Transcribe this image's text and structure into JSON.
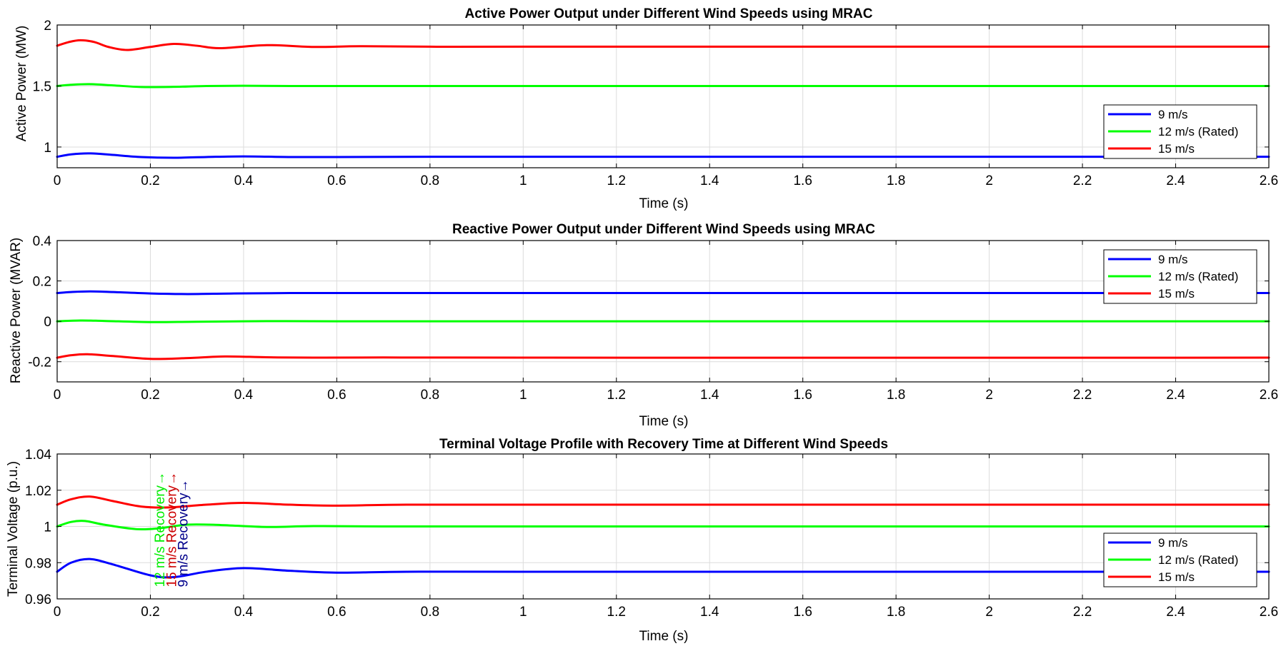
{
  "colors": {
    "series1": "#0000ff",
    "series2": "#00ff00",
    "series3": "#ff0000",
    "grid": "#dcdcdc",
    "axis": "#000000",
    "background": "#ffffff",
    "ann1": "#00ee00",
    "ann2": "#cc0000",
    "ann3": "#00008b"
  },
  "chart_data": [
    {
      "type": "line",
      "title": "Active Power Output under Different Wind Speeds using MRAC",
      "xlabel": "Time (s)",
      "ylabel": "Active Power (MW)",
      "xlim": [
        0,
        2.6
      ],
      "ylim": [
        0.83,
        2.0
      ],
      "grid": true,
      "xticks": [
        0,
        0.2,
        0.4,
        0.6,
        0.8,
        1,
        1.2,
        1.4,
        1.6,
        1.8,
        2,
        2.2,
        2.4,
        2.6
      ],
      "xtick_labels": [
        "0",
        "0.2",
        "0.4",
        "0.6",
        "0.8",
        "1",
        "1.2",
        "1.4",
        "1.6",
        "1.8",
        "2",
        "2.2",
        "2.4",
        "2.6"
      ],
      "yticks": [
        1.0,
        1.5,
        2.0
      ],
      "ytick_labels": [
        "1",
        "1.5",
        "2"
      ],
      "legend_position": "right",
      "series": [
        {
          "name": "9 m/s",
          "color_key": "series1",
          "x": [
            0,
            0.03,
            0.07,
            0.12,
            0.18,
            0.25,
            0.32,
            0.4,
            0.5,
            0.6,
            0.8,
            1.2,
            2.6
          ],
          "y": [
            0.92,
            0.94,
            0.948,
            0.935,
            0.918,
            0.912,
            0.918,
            0.923,
            0.918,
            0.918,
            0.92,
            0.92,
            0.92
          ]
        },
        {
          "name": "12 m/s (Rated)",
          "color_key": "series2",
          "x": [
            0,
            0.03,
            0.07,
            0.12,
            0.18,
            0.25,
            0.32,
            0.4,
            0.5,
            0.6,
            0.8,
            1.2,
            2.6
          ],
          "y": [
            1.5,
            1.51,
            1.515,
            1.505,
            1.492,
            1.493,
            1.5,
            1.502,
            1.5,
            1.5,
            1.5,
            1.5,
            1.5
          ]
        },
        {
          "name": "15 m/s",
          "color_key": "series3",
          "x": [
            0,
            0.025,
            0.05,
            0.08,
            0.11,
            0.15,
            0.2,
            0.25,
            0.3,
            0.35,
            0.45,
            0.55,
            0.65,
            0.8,
            1.0,
            2.6
          ],
          "y": [
            1.83,
            1.86,
            1.875,
            1.86,
            1.82,
            1.795,
            1.82,
            1.845,
            1.83,
            1.81,
            1.835,
            1.82,
            1.826,
            1.822,
            1.822,
            1.822
          ]
        }
      ]
    },
    {
      "type": "line",
      "title": "Reactive Power Output under Different Wind Speeds using MRAC",
      "xlabel": "Time (s)",
      "ylabel": "Reactive Power (MVAR)",
      "xlim": [
        0,
        2.6
      ],
      "ylim": [
        -0.3,
        0.4
      ],
      "grid": true,
      "xticks": [
        0,
        0.2,
        0.4,
        0.6,
        0.8,
        1,
        1.2,
        1.4,
        1.6,
        1.8,
        2,
        2.2,
        2.4,
        2.6
      ],
      "xtick_labels": [
        "0",
        "0.2",
        "0.4",
        "0.6",
        "0.8",
        "1",
        "1.2",
        "1.4",
        "1.6",
        "1.8",
        "2",
        "2.2",
        "2.4",
        "2.6"
      ],
      "yticks": [
        -0.2,
        0,
        0.2,
        0.4
      ],
      "ytick_labels": [
        "-0.2",
        "0",
        "0.2",
        "0.4"
      ],
      "legend_position": "top-right",
      "series": [
        {
          "name": "9 m/s",
          "color_key": "series1",
          "x": [
            0,
            0.03,
            0.07,
            0.12,
            0.2,
            0.28,
            0.38,
            0.5,
            0.7,
            1.0,
            2.6
          ],
          "y": [
            0.14,
            0.145,
            0.148,
            0.145,
            0.138,
            0.135,
            0.138,
            0.14,
            0.14,
            0.14,
            0.14
          ]
        },
        {
          "name": "12 m/s (Rated)",
          "color_key": "series2",
          "x": [
            0,
            0.05,
            0.1,
            0.2,
            0.3,
            0.45,
            0.6,
            1.0,
            2.6
          ],
          "y": [
            0.0,
            0.004,
            0.002,
            -0.004,
            -0.002,
            0.001,
            0.0,
            0.0,
            0.0
          ]
        },
        {
          "name": "15 m/s",
          "color_key": "series3",
          "x": [
            0,
            0.03,
            0.065,
            0.12,
            0.2,
            0.28,
            0.36,
            0.45,
            0.55,
            0.7,
            1.0,
            2.6
          ],
          "y": [
            -0.18,
            -0.168,
            -0.163,
            -0.172,
            -0.186,
            -0.182,
            -0.174,
            -0.178,
            -0.18,
            -0.179,
            -0.18,
            -0.18
          ]
        }
      ]
    },
    {
      "type": "line",
      "title": "Terminal Voltage Profile with Recovery Time at Different Wind Speeds",
      "xlabel": "Time (s)",
      "ylabel": "Terminal Voltage (p.u.)",
      "xlim": [
        0,
        2.6
      ],
      "ylim": [
        0.96,
        1.04
      ],
      "grid": true,
      "xticks": [
        0,
        0.2,
        0.4,
        0.6,
        0.8,
        1,
        1.2,
        1.4,
        1.6,
        1.8,
        2,
        2.2,
        2.4,
        2.6
      ],
      "xtick_labels": [
        "0",
        "0.2",
        "0.4",
        "0.6",
        "0.8",
        "1",
        "1.2",
        "1.4",
        "1.6",
        "1.8",
        "2",
        "2.2",
        "2.4",
        "2.6"
      ],
      "yticks": [
        0.96,
        0.98,
        1.0,
        1.02,
        1.04
      ],
      "ytick_labels": [
        "0.96",
        "0.98",
        "1",
        "1.02",
        "1.04"
      ],
      "legend_position": "bottom-right",
      "series": [
        {
          "name": "9 m/s",
          "color_key": "series1",
          "x": [
            0,
            0.03,
            0.07,
            0.12,
            0.2,
            0.25,
            0.32,
            0.4,
            0.5,
            0.6,
            0.75,
            1.0,
            2.6
          ],
          "y": [
            0.975,
            0.98,
            0.982,
            0.979,
            0.973,
            0.972,
            0.975,
            0.977,
            0.9755,
            0.9745,
            0.975,
            0.975,
            0.975
          ]
        },
        {
          "name": "12 m/s (Rated)",
          "color_key": "series2",
          "x": [
            0,
            0.03,
            0.06,
            0.1,
            0.17,
            0.22,
            0.28,
            0.35,
            0.45,
            0.55,
            0.7,
            1.0,
            2.6
          ],
          "y": [
            1.0,
            1.0025,
            1.003,
            1.001,
            0.9985,
            0.999,
            1.001,
            1.0008,
            0.9997,
            1.0002,
            1.0,
            1.0,
            1.0
          ]
        },
        {
          "name": "15 m/s",
          "color_key": "series3",
          "x": [
            0,
            0.03,
            0.07,
            0.12,
            0.18,
            0.24,
            0.32,
            0.4,
            0.5,
            0.6,
            0.75,
            1.0,
            2.6
          ],
          "y": [
            1.012,
            1.015,
            1.0165,
            1.014,
            1.011,
            1.0105,
            1.012,
            1.013,
            1.012,
            1.0115,
            1.012,
            1.012,
            1.012
          ]
        }
      ],
      "annotations": [
        {
          "text": "12 m/s Recovery→",
          "x": 0.23,
          "y": 0.9665,
          "rotation": -90,
          "color_key": "ann1"
        },
        {
          "text": "15 m/s Recovery→",
          "x": 0.255,
          "y": 0.9665,
          "rotation": -90,
          "color_key": "ann2"
        },
        {
          "text": "9 m/s Recovery→",
          "x": 0.28,
          "y": 0.9665,
          "rotation": -90,
          "color_key": "ann3"
        }
      ]
    }
  ]
}
